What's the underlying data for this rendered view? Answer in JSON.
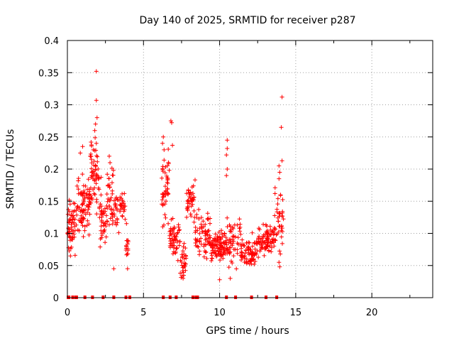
{
  "chart_data": {
    "type": "scatter",
    "title": "Day 140 of 2025, SRMTID for receiver p287",
    "xlabel": "GPS time / hours",
    "ylabel": "SRMTID / TECUs",
    "xlim": [
      0,
      24
    ],
    "ylim": [
      0,
      0.4
    ],
    "xticks": [
      0,
      5,
      10,
      15,
      20
    ],
    "yticks": [
      0,
      0.05,
      0.1,
      0.15,
      0.2,
      0.25,
      0.3,
      0.35,
      0.4
    ],
    "ytick_labels": [
      "0",
      "0.05",
      "0.1",
      "0.15",
      "0.2",
      "0.25",
      "0.3",
      "0.35",
      "0.4"
    ],
    "grid": true,
    "marker": "+",
    "color": "#ff0000",
    "clusters": [
      {
        "x_start": 0.0,
        "x_end": 0.6,
        "y_center": 0.11,
        "y_spread": 0.04,
        "n": 60
      },
      {
        "x_start": 0.6,
        "x_end": 1.5,
        "y_center": 0.14,
        "y_spread": 0.05,
        "n": 80
      },
      {
        "x_start": 1.5,
        "x_end": 2.1,
        "y_center": 0.19,
        "y_spread": 0.06,
        "n": 60
      },
      {
        "x_start": 2.1,
        "x_end": 2.6,
        "y_center": 0.12,
        "y_spread": 0.05,
        "n": 40
      },
      {
        "x_start": 2.6,
        "x_end": 3.1,
        "y_center": 0.15,
        "y_spread": 0.05,
        "n": 40
      },
      {
        "x_start": 3.1,
        "x_end": 3.8,
        "y_center": 0.14,
        "y_spread": 0.03,
        "n": 45
      },
      {
        "x_start": 3.8,
        "x_end": 4.0,
        "y_center": 0.08,
        "y_spread": 0.03,
        "n": 15
      },
      {
        "x_start": 6.2,
        "x_end": 6.7,
        "y_center": 0.17,
        "y_spread": 0.06,
        "n": 45
      },
      {
        "x_start": 6.7,
        "x_end": 7.4,
        "y_center": 0.09,
        "y_spread": 0.03,
        "n": 55
      },
      {
        "x_start": 7.4,
        "x_end": 7.8,
        "y_center": 0.06,
        "y_spread": 0.03,
        "n": 30
      },
      {
        "x_start": 7.8,
        "x_end": 8.4,
        "y_center": 0.15,
        "y_spread": 0.03,
        "n": 40
      },
      {
        "x_start": 8.4,
        "x_end": 9.4,
        "y_center": 0.1,
        "y_spread": 0.04,
        "n": 70
      },
      {
        "x_start": 9.4,
        "x_end": 10.4,
        "y_center": 0.08,
        "y_spread": 0.025,
        "n": 90
      },
      {
        "x_start": 10.4,
        "x_end": 11.4,
        "y_center": 0.09,
        "y_spread": 0.04,
        "n": 60
      },
      {
        "x_start": 11.4,
        "x_end": 12.4,
        "y_center": 0.07,
        "y_spread": 0.025,
        "n": 70
      },
      {
        "x_start": 12.4,
        "x_end": 13.6,
        "y_center": 0.09,
        "y_spread": 0.025,
        "n": 90
      },
      {
        "x_start": 13.6,
        "x_end": 14.2,
        "y_center": 0.12,
        "y_spread": 0.06,
        "n": 40
      }
    ],
    "outliers": [
      {
        "x": 1.9,
        "y": 0.352
      },
      {
        "x": 1.9,
        "y": 0.307
      },
      {
        "x": 1.95,
        "y": 0.28
      },
      {
        "x": 1.85,
        "y": 0.27
      },
      {
        "x": 1.8,
        "y": 0.26
      },
      {
        "x": 1.9,
        "y": 0.24
      },
      {
        "x": 6.8,
        "y": 0.275
      },
      {
        "x": 6.85,
        "y": 0.272
      },
      {
        "x": 6.3,
        "y": 0.25
      },
      {
        "x": 6.25,
        "y": 0.24
      },
      {
        "x": 6.35,
        "y": 0.23
      },
      {
        "x": 6.9,
        "y": 0.237
      },
      {
        "x": 10.5,
        "y": 0.245
      },
      {
        "x": 10.5,
        "y": 0.232
      },
      {
        "x": 10.45,
        "y": 0.222
      },
      {
        "x": 10.5,
        "y": 0.2
      },
      {
        "x": 10.45,
        "y": 0.19
      },
      {
        "x": 14.1,
        "y": 0.312
      },
      {
        "x": 14.05,
        "y": 0.265
      },
      {
        "x": 14.1,
        "y": 0.213
      },
      {
        "x": 13.9,
        "y": 0.205
      },
      {
        "x": 13.95,
        "y": 0.195
      },
      {
        "x": 13.9,
        "y": 0.185
      },
      {
        "x": 14.0,
        "y": 0.16
      },
      {
        "x": 13.95,
        "y": 0.048
      },
      {
        "x": 13.9,
        "y": 0.055
      },
      {
        "x": 1.0,
        "y": 0.235
      },
      {
        "x": 0.85,
        "y": 0.225
      },
      {
        "x": 1.5,
        "y": 0.22
      },
      {
        "x": 2.75,
        "y": 0.22
      },
      {
        "x": 2.8,
        "y": 0.21
      },
      {
        "x": 3.05,
        "y": 0.045
      },
      {
        "x": 10.0,
        "y": 0.028
      },
      {
        "x": 10.7,
        "y": 0.03
      },
      {
        "x": 7.6,
        "y": 0.03
      },
      {
        "x": 0.2,
        "y": 0.065
      },
      {
        "x": 3.95,
        "y": 0.045
      }
    ],
    "zero_marks": [
      0.05,
      0.1,
      0.35,
      0.55,
      0.6,
      1.15,
      1.65,
      2.35,
      3.05,
      3.85,
      4.1,
      6.3,
      6.75,
      7.15,
      8.25,
      8.45,
      8.55,
      10.45,
      11.05,
      12.1,
      13.05,
      13.75
    ]
  }
}
